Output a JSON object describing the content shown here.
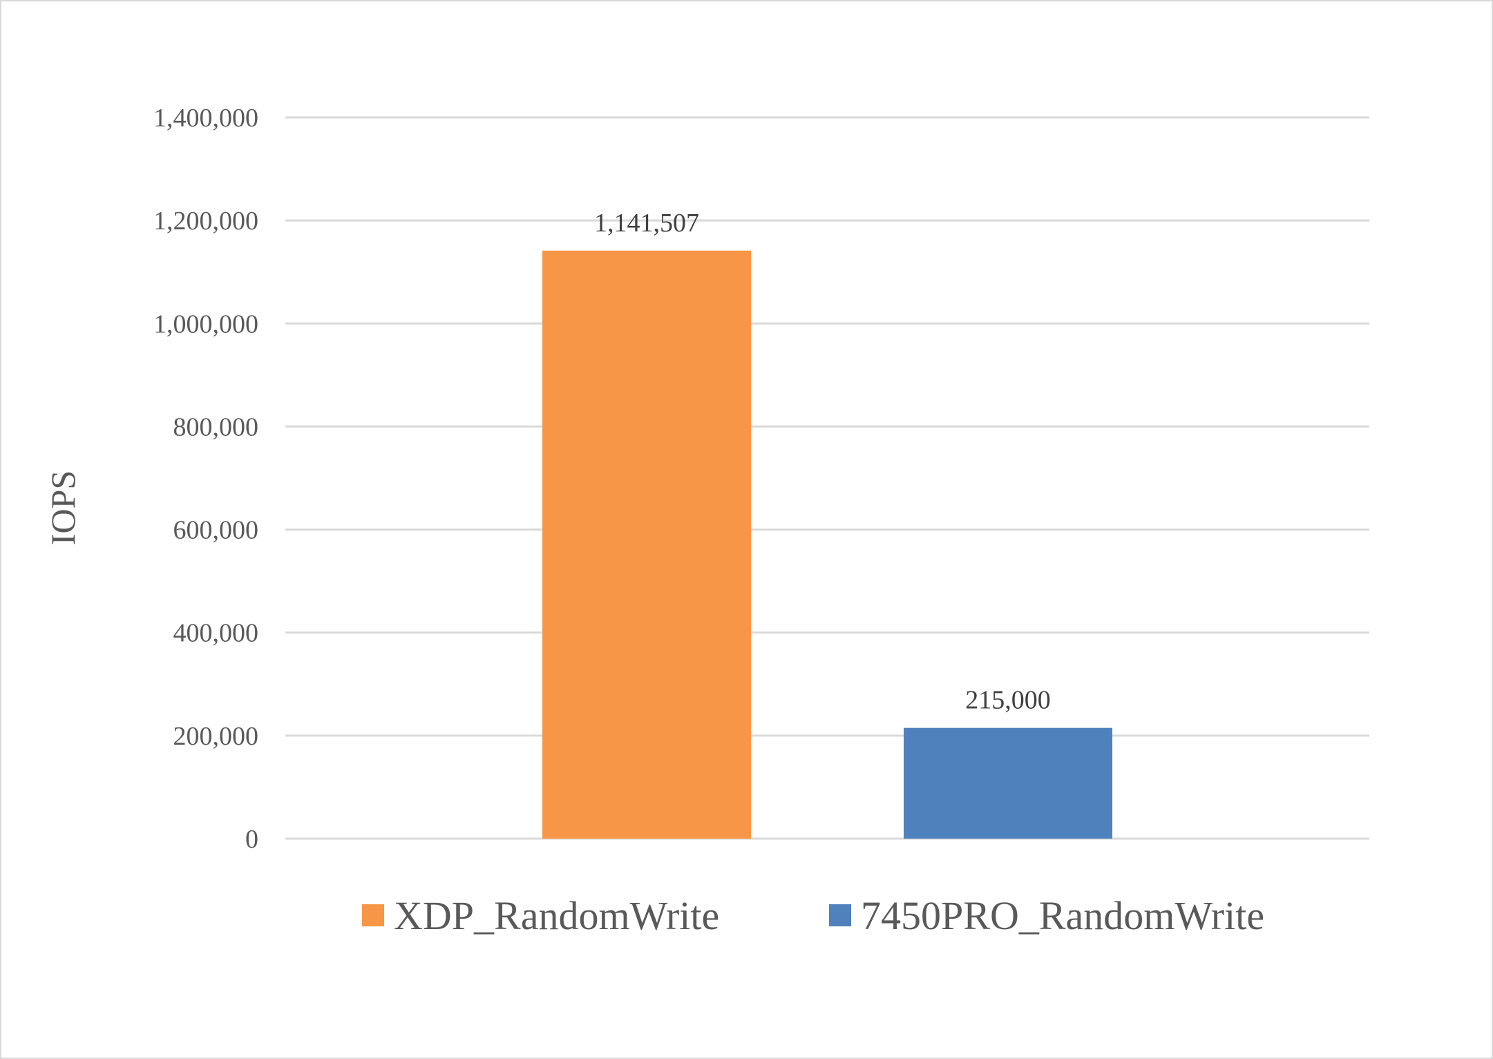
{
  "chart_data": {
    "type": "bar",
    "title": "",
    "xlabel": "",
    "ylabel": "IOPS",
    "ylim": [
      0,
      1400000
    ],
    "yticks": [
      0,
      200000,
      400000,
      600000,
      800000,
      1000000,
      1200000,
      1400000
    ],
    "ytick_labels": [
      "0",
      "200,000",
      "400,000",
      "600,000",
      "800,000",
      "1,000,000",
      "1,200,000",
      "1,400,000"
    ],
    "grid": true,
    "legend_position": "bottom",
    "series": [
      {
        "name": "XDP_RandomWrite",
        "value": 1141507,
        "label": "1,141,507",
        "color": "#F79646"
      },
      {
        "name": "7450PRO_RandomWrite",
        "value": 215000,
        "label": "215,000",
        "color": "#4F81BD"
      }
    ]
  }
}
